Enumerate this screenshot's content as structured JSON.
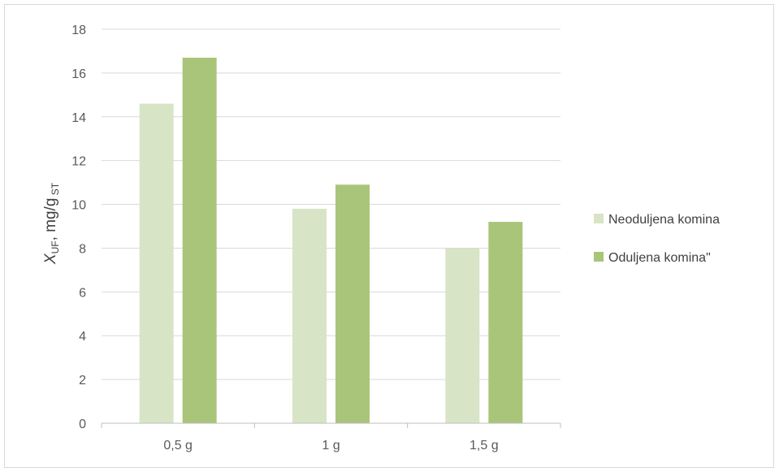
{
  "chart_data": {
    "type": "bar",
    "categories": [
      "0,5 g",
      "1 g",
      "1,5 g"
    ],
    "series": [
      {
        "name": "Neoduljena komina",
        "values": [
          14.6,
          9.8,
          8.0
        ],
        "color": "#d8e4c6"
      },
      {
        "name": "Oduljena komina\"",
        "values": [
          16.7,
          10.9,
          9.2
        ],
        "color": "#a9c57a"
      }
    ],
    "ylabel": {
      "var": "X",
      "var_sub": "UF",
      "unit": ", mg/g",
      "unit_sub": " ST"
    },
    "ylim": [
      0,
      18
    ],
    "yticks": [
      0,
      2,
      4,
      6,
      8,
      10,
      12,
      14,
      16,
      18
    ],
    "grid": true,
    "legend_position": "right"
  }
}
